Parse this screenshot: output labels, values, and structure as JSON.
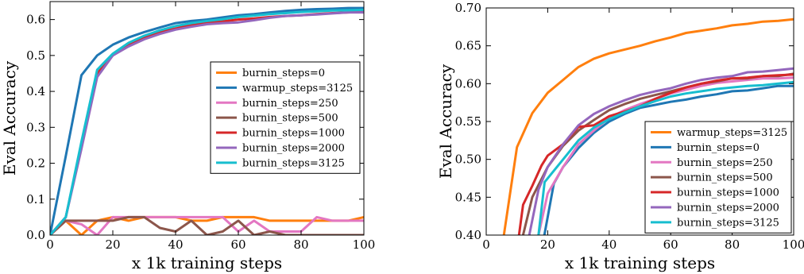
{
  "chart_data": [
    {
      "type": "line",
      "title": "",
      "xlabel": "x 1k training steps",
      "ylabel": "Eval Accuracy",
      "xlim": [
        0,
        100
      ],
      "ylim": [
        0.0,
        0.65
      ],
      "xticks": [
        "0",
        "20",
        "40",
        "60",
        "80",
        "100"
      ],
      "yticks": [
        "0.0",
        "0.1",
        "0.2",
        "0.3",
        "0.4",
        "0.5",
        "0.6"
      ],
      "xtick_values": [
        0,
        20,
        40,
        60,
        80,
        100
      ],
      "ytick_values": [
        0,
        0.1,
        0.2,
        0.3,
        0.4,
        0.5,
        0.6
      ],
      "grid": false,
      "legend_position": "center-right",
      "series": [
        {
          "name": "burnin_steps=0",
          "color": "#ff7f0e",
          "x": [
            0,
            5,
            10,
            15,
            20,
            25,
            30,
            35,
            40,
            45,
            50,
            55,
            60,
            65,
            70,
            75,
            80,
            85,
            90,
            95,
            100
          ],
          "y": [
            0,
            0.04,
            0.0,
            0.04,
            0.05,
            0.04,
            0.05,
            0.05,
            0.05,
            0.04,
            0.04,
            0.05,
            0.05,
            0.05,
            0.04,
            0.04,
            0.04,
            0.04,
            0.04,
            0.04,
            0.05
          ]
        },
        {
          "name": "warmup_steps=3125",
          "color": "#1f77b4",
          "x": [
            0,
            5,
            10,
            15,
            20,
            25,
            30,
            35,
            40,
            45,
            50,
            55,
            60,
            65,
            70,
            75,
            80,
            85,
            90,
            95,
            100
          ],
          "y": [
            0,
            0.22,
            0.445,
            0.5,
            0.53,
            0.55,
            0.565,
            0.578,
            0.59,
            0.596,
            0.6,
            0.606,
            0.612,
            0.615,
            0.62,
            0.624,
            0.627,
            0.629,
            0.63,
            0.632,
            0.632
          ]
        },
        {
          "name": "burnin_steps=250",
          "color": "#e377c2",
          "x": [
            0,
            5,
            10,
            15,
            20,
            25,
            30,
            35,
            40,
            45,
            50,
            55,
            60,
            65,
            70,
            75,
            80,
            85,
            90,
            95,
            100
          ],
          "y": [
            0,
            0.04,
            0.03,
            0.0,
            0.05,
            0.05,
            0.05,
            0.05,
            0.05,
            0.05,
            0.05,
            0.05,
            0.01,
            0.04,
            0.01,
            0.01,
            0.01,
            0.05,
            0.04,
            0.04,
            0.04
          ]
        },
        {
          "name": "burnin_steps=500",
          "color": "#8c564b",
          "x": [
            0,
            5,
            10,
            15,
            20,
            25,
            30,
            35,
            40,
            45,
            50,
            55,
            60,
            65,
            70,
            75,
            80,
            85,
            90,
            95,
            100
          ],
          "y": [
            0,
            0.04,
            0.04,
            0.04,
            0.04,
            0.05,
            0.05,
            0.02,
            0.01,
            0.04,
            0.0,
            0.01,
            0.04,
            0.0,
            0.01,
            0.0,
            0.0,
            0.0,
            0.0,
            0.0,
            0.0
          ]
        },
        {
          "name": "burnin_steps=1000",
          "color": "#d62728",
          "x": [
            0,
            5,
            10,
            15,
            20,
            25,
            30,
            35,
            40,
            45,
            50,
            55,
            60,
            65,
            70,
            75,
            80,
            85,
            90,
            95,
            100
          ],
          "y": [
            0,
            0.05,
            0.25,
            0.45,
            0.5,
            0.53,
            0.55,
            0.565,
            0.575,
            0.585,
            0.59,
            0.595,
            0.6,
            0.603,
            0.607,
            0.61,
            0.612,
            0.615,
            0.618,
            0.62,
            0.622
          ]
        },
        {
          "name": "burnin_steps=2000",
          "color": "#9467bd",
          "x": [
            0,
            5,
            10,
            15,
            20,
            25,
            30,
            35,
            40,
            45,
            50,
            55,
            60,
            65,
            70,
            75,
            80,
            85,
            90,
            95,
            100
          ],
          "y": [
            0,
            0.05,
            0.24,
            0.44,
            0.5,
            0.525,
            0.545,
            0.56,
            0.572,
            0.58,
            0.587,
            0.59,
            0.592,
            0.598,
            0.605,
            0.61,
            0.612,
            0.614,
            0.617,
            0.62,
            0.62
          ]
        },
        {
          "name": "burnin_steps=3125",
          "color": "#17becf",
          "x": [
            0,
            5,
            10,
            15,
            20,
            25,
            30,
            35,
            40,
            45,
            50,
            55,
            60,
            65,
            70,
            75,
            80,
            85,
            90,
            95,
            100
          ],
          "y": [
            0,
            0.05,
            0.26,
            0.46,
            0.505,
            0.535,
            0.555,
            0.57,
            0.582,
            0.59,
            0.596,
            0.601,
            0.607,
            0.611,
            0.615,
            0.618,
            0.621,
            0.623,
            0.625,
            0.626,
            0.627
          ]
        }
      ]
    },
    {
      "type": "line",
      "title": "",
      "xlabel": "x 1k training steps",
      "ylabel": "Eval Accuracy",
      "xlim": [
        0,
        100
      ],
      "ylim": [
        0.4,
        0.7
      ],
      "xticks": [
        "0",
        "20",
        "40",
        "60",
        "80",
        "100"
      ],
      "yticks": [
        "0.40",
        "0.45",
        "0.50",
        "0.55",
        "0.60",
        "0.65",
        "0.70"
      ],
      "xtick_values": [
        0,
        20,
        40,
        60,
        80,
        100
      ],
      "ytick_values": [
        0.4,
        0.45,
        0.5,
        0.55,
        0.6,
        0.65,
        0.7
      ],
      "grid": false,
      "legend_position": "lower-right",
      "series": [
        {
          "name": "warmup_steps=3125",
          "color": "#ff7f0e",
          "x": [
            5,
            10,
            15,
            20,
            25,
            30,
            35,
            40,
            45,
            50,
            55,
            60,
            65,
            70,
            75,
            80,
            85,
            90,
            95,
            100
          ],
          "y": [
            0.38,
            0.516,
            0.561,
            0.588,
            0.605,
            0.622,
            0.633,
            0.64,
            0.645,
            0.65,
            0.656,
            0.661,
            0.667,
            0.67,
            0.673,
            0.677,
            0.679,
            0.682,
            0.683,
            0.685
          ]
        },
        {
          "name": "burnin_steps=0",
          "color": "#1f77b4",
          "x": [
            18,
            22,
            25,
            30,
            35,
            40,
            45,
            50,
            55,
            60,
            65,
            70,
            75,
            80,
            85,
            90,
            95,
            100
          ],
          "y": [
            0.38,
            0.468,
            0.49,
            0.515,
            0.535,
            0.55,
            0.56,
            0.568,
            0.572,
            0.576,
            0.579,
            0.583,
            0.586,
            0.59,
            0.591,
            0.594,
            0.597,
            0.597
          ]
        },
        {
          "name": "burnin_steps=250",
          "color": "#e377c2",
          "x": [
            17,
            20,
            25,
            30,
            35,
            40,
            45,
            50,
            55,
            60,
            65,
            70,
            75,
            80,
            85,
            90,
            95,
            100
          ],
          "y": [
            0.4,
            0.455,
            0.49,
            0.52,
            0.538,
            0.555,
            0.565,
            0.573,
            0.58,
            0.587,
            0.592,
            0.597,
            0.601,
            0.603,
            0.605,
            0.607,
            0.607,
            0.608
          ]
        },
        {
          "name": "burnin_steps=500",
          "color": "#8c564b",
          "x": [
            12,
            15,
            20,
            25,
            30,
            35,
            40,
            45,
            50,
            55,
            60,
            65,
            70,
            75,
            80,
            85,
            90,
            95,
            100
          ],
          "y": [
            0.4,
            0.45,
            0.49,
            0.518,
            0.538,
            0.552,
            0.565,
            0.573,
            0.58,
            0.585,
            0.59,
            0.595,
            0.6,
            0.603,
            0.607,
            0.607,
            0.61,
            0.61,
            0.613
          ]
        },
        {
          "name": "burnin_steps=1000",
          "color": "#d62728",
          "x": [
            10,
            12,
            15,
            18,
            20,
            25,
            30,
            35,
            40,
            45,
            50,
            55,
            60,
            65,
            70,
            75,
            80,
            85,
            90,
            95,
            100
          ],
          "y": [
            0.38,
            0.44,
            0.465,
            0.492,
            0.505,
            0.52,
            0.543,
            0.545,
            0.557,
            0.563,
            0.57,
            0.58,
            0.588,
            0.595,
            0.6,
            0.604,
            0.607,
            0.608,
            0.61,
            0.611,
            0.612
          ]
        },
        {
          "name": "burnin_steps=2000",
          "color": "#9467bd",
          "x": [
            14,
            17,
            20,
            25,
            30,
            35,
            40,
            45,
            50,
            55,
            60,
            65,
            70,
            75,
            80,
            85,
            90,
            95,
            100
          ],
          "y": [
            0.4,
            0.46,
            0.49,
            0.52,
            0.545,
            0.56,
            0.57,
            0.578,
            0.585,
            0.59,
            0.594,
            0.6,
            0.605,
            0.608,
            0.61,
            0.615,
            0.616,
            0.618,
            0.62
          ]
        },
        {
          "name": "burnin_steps=3125",
          "color": "#17becf",
          "x": [
            17,
            19,
            25,
            30,
            35,
            40,
            45,
            50,
            55,
            60,
            65,
            70,
            75,
            80,
            85,
            90,
            95,
            100
          ],
          "y": [
            0.4,
            0.47,
            0.5,
            0.525,
            0.542,
            0.553,
            0.562,
            0.57,
            0.577,
            0.583,
            0.587,
            0.59,
            0.593,
            0.595,
            0.597,
            0.598,
            0.6,
            0.602
          ]
        }
      ]
    }
  ]
}
